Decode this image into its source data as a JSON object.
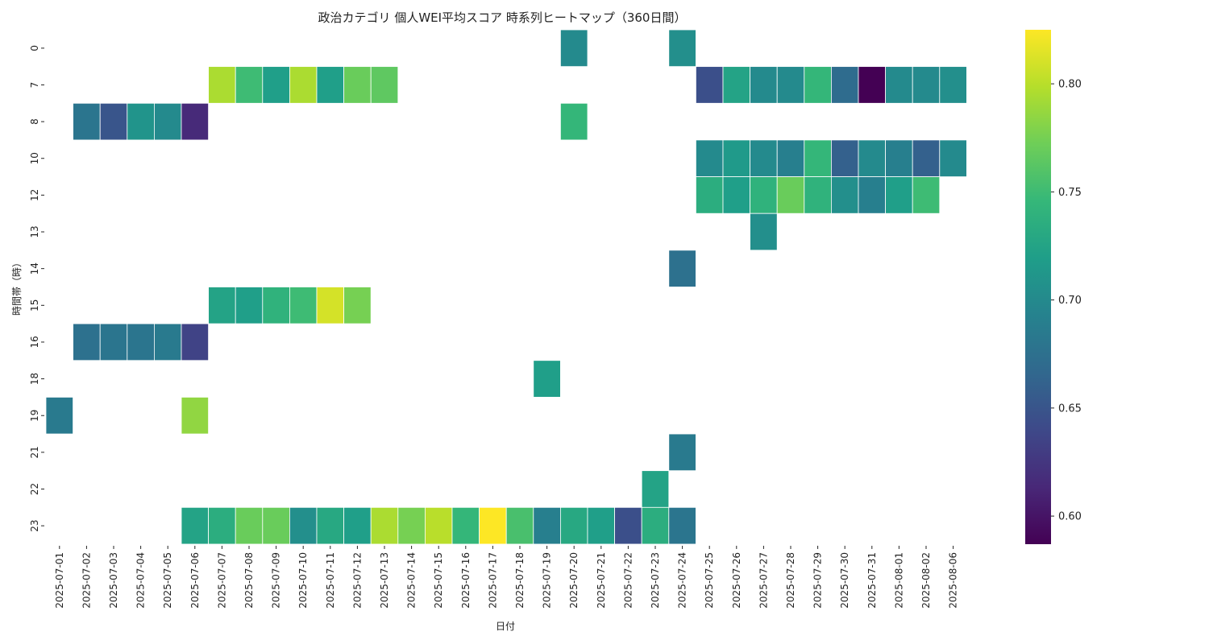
{
  "chart_data": {
    "type": "heatmap",
    "title": "政治カテゴリ 個人WEI平均スコア 時系列ヒートマップ（360日間）",
    "xlabel": "日付",
    "ylabel": "時間帯（時）",
    "x_categories": [
      "2025-07-01",
      "2025-07-02",
      "2025-07-03",
      "2025-07-04",
      "2025-07-05",
      "2025-07-06",
      "2025-07-07",
      "2025-07-08",
      "2025-07-09",
      "2025-07-10",
      "2025-07-11",
      "2025-07-12",
      "2025-07-13",
      "2025-07-14",
      "2025-07-15",
      "2025-07-16",
      "2025-07-17",
      "2025-07-18",
      "2025-07-19",
      "2025-07-20",
      "2025-07-21",
      "2025-07-22",
      "2025-07-23",
      "2025-07-24",
      "2025-07-25",
      "2025-07-26",
      "2025-07-27",
      "2025-07-28",
      "2025-07-29",
      "2025-07-30",
      "2025-07-31",
      "2025-08-01",
      "2025-08-02",
      "2025-08-06"
    ],
    "y_categories": [
      "0",
      "7",
      "8",
      "10",
      "12",
      "13",
      "14",
      "15",
      "16",
      "18",
      "19",
      "21",
      "22",
      "23"
    ],
    "colormap": "viridis",
    "vmin": 0.587,
    "vmax": 0.825,
    "colorbar_ticks": [
      "0.60",
      "0.65",
      "0.70",
      "0.75",
      "0.80"
    ],
    "colorbar_tick_values": [
      0.6,
      0.65,
      0.7,
      0.75,
      0.8
    ],
    "values": [
      [
        null,
        null,
        null,
        null,
        null,
        null,
        null,
        null,
        null,
        null,
        null,
        null,
        null,
        null,
        null,
        null,
        null,
        null,
        null,
        0.7,
        null,
        null,
        null,
        0.705,
        null,
        null,
        null,
        null,
        null,
        null,
        null,
        null,
        null,
        null
      ],
      [
        null,
        null,
        null,
        null,
        null,
        null,
        0.795,
        0.75,
        0.72,
        0.795,
        0.72,
        0.77,
        0.765,
        null,
        null,
        null,
        null,
        null,
        null,
        null,
        null,
        null,
        null,
        null,
        0.645,
        0.725,
        0.7,
        0.7,
        0.745,
        0.67,
        0.587,
        0.7,
        0.7,
        0.705
      ],
      [
        null,
        0.68,
        0.65,
        0.71,
        0.7,
        0.615,
        null,
        null,
        null,
        null,
        null,
        null,
        null,
        null,
        null,
        null,
        null,
        null,
        null,
        0.745,
        null,
        null,
        null,
        null,
        null,
        null,
        null,
        null,
        null,
        null,
        null,
        null,
        null,
        null
      ],
      [
        null,
        null,
        null,
        null,
        null,
        null,
        null,
        null,
        null,
        null,
        null,
        null,
        null,
        null,
        null,
        null,
        null,
        null,
        null,
        null,
        null,
        null,
        null,
        null,
        0.7,
        0.715,
        0.7,
        0.69,
        0.745,
        0.66,
        0.7,
        0.69,
        0.66,
        0.7
      ],
      [
        null,
        null,
        null,
        null,
        null,
        null,
        null,
        null,
        null,
        null,
        null,
        null,
        null,
        null,
        null,
        null,
        null,
        null,
        null,
        null,
        null,
        null,
        null,
        null,
        0.735,
        0.72,
        0.74,
        0.77,
        0.74,
        0.705,
        0.69,
        0.72,
        0.75,
        null
      ],
      [
        null,
        null,
        null,
        null,
        null,
        null,
        null,
        null,
        null,
        null,
        null,
        null,
        null,
        null,
        null,
        null,
        null,
        null,
        null,
        null,
        null,
        null,
        null,
        null,
        null,
        null,
        0.705,
        null,
        null,
        null,
        null,
        null,
        null,
        null
      ],
      [
        null,
        null,
        null,
        null,
        null,
        null,
        null,
        null,
        null,
        null,
        null,
        null,
        null,
        null,
        null,
        null,
        null,
        null,
        null,
        null,
        null,
        null,
        null,
        0.675,
        null,
        null,
        null,
        null,
        null,
        null,
        null,
        null,
        null,
        null
      ],
      [
        null,
        null,
        null,
        null,
        null,
        null,
        0.725,
        0.72,
        0.74,
        0.75,
        0.81,
        0.775,
        null,
        null,
        null,
        null,
        null,
        null,
        null,
        null,
        null,
        null,
        null,
        null,
        null,
        null,
        null,
        null,
        null,
        null,
        null,
        null,
        null,
        null
      ],
      [
        null,
        0.675,
        0.68,
        0.68,
        0.685,
        0.635,
        null,
        null,
        null,
        null,
        null,
        null,
        null,
        null,
        null,
        null,
        null,
        null,
        null,
        null,
        null,
        null,
        null,
        null,
        null,
        null,
        null,
        null,
        null,
        null,
        null,
        null,
        null,
        null
      ],
      [
        null,
        null,
        null,
        null,
        null,
        null,
        null,
        null,
        null,
        null,
        null,
        null,
        null,
        null,
        null,
        null,
        null,
        null,
        0.72,
        null,
        null,
        null,
        null,
        null,
        null,
        null,
        null,
        null,
        null,
        null,
        null,
        null,
        null,
        null
      ],
      [
        0.685,
        null,
        null,
        null,
        null,
        0.785,
        null,
        null,
        null,
        null,
        null,
        null,
        null,
        null,
        null,
        null,
        null,
        null,
        null,
        null,
        null,
        null,
        null,
        null,
        null,
        null,
        null,
        null,
        null,
        null,
        null,
        null,
        null,
        null
      ],
      [
        null,
        null,
        null,
        null,
        null,
        null,
        null,
        null,
        null,
        null,
        null,
        null,
        null,
        null,
        null,
        null,
        null,
        null,
        null,
        null,
        null,
        null,
        null,
        0.685,
        null,
        null,
        null,
        null,
        null,
        null,
        null,
        null,
        null,
        null
      ],
      [
        null,
        null,
        null,
        null,
        null,
        null,
        null,
        null,
        null,
        null,
        null,
        null,
        null,
        null,
        null,
        null,
        null,
        null,
        null,
        null,
        null,
        null,
        0.725,
        null,
        null,
        null,
        null,
        null,
        null,
        null,
        null,
        null,
        null,
        null
      ],
      [
        null,
        null,
        null,
        null,
        null,
        0.725,
        0.735,
        0.77,
        0.77,
        0.705,
        0.73,
        0.72,
        0.795,
        0.775,
        0.8,
        0.745,
        0.825,
        0.755,
        0.69,
        0.73,
        0.72,
        0.645,
        0.735,
        0.68,
        null,
        null,
        null,
        null,
        null,
        null,
        null,
        null,
        null,
        null
      ]
    ]
  }
}
